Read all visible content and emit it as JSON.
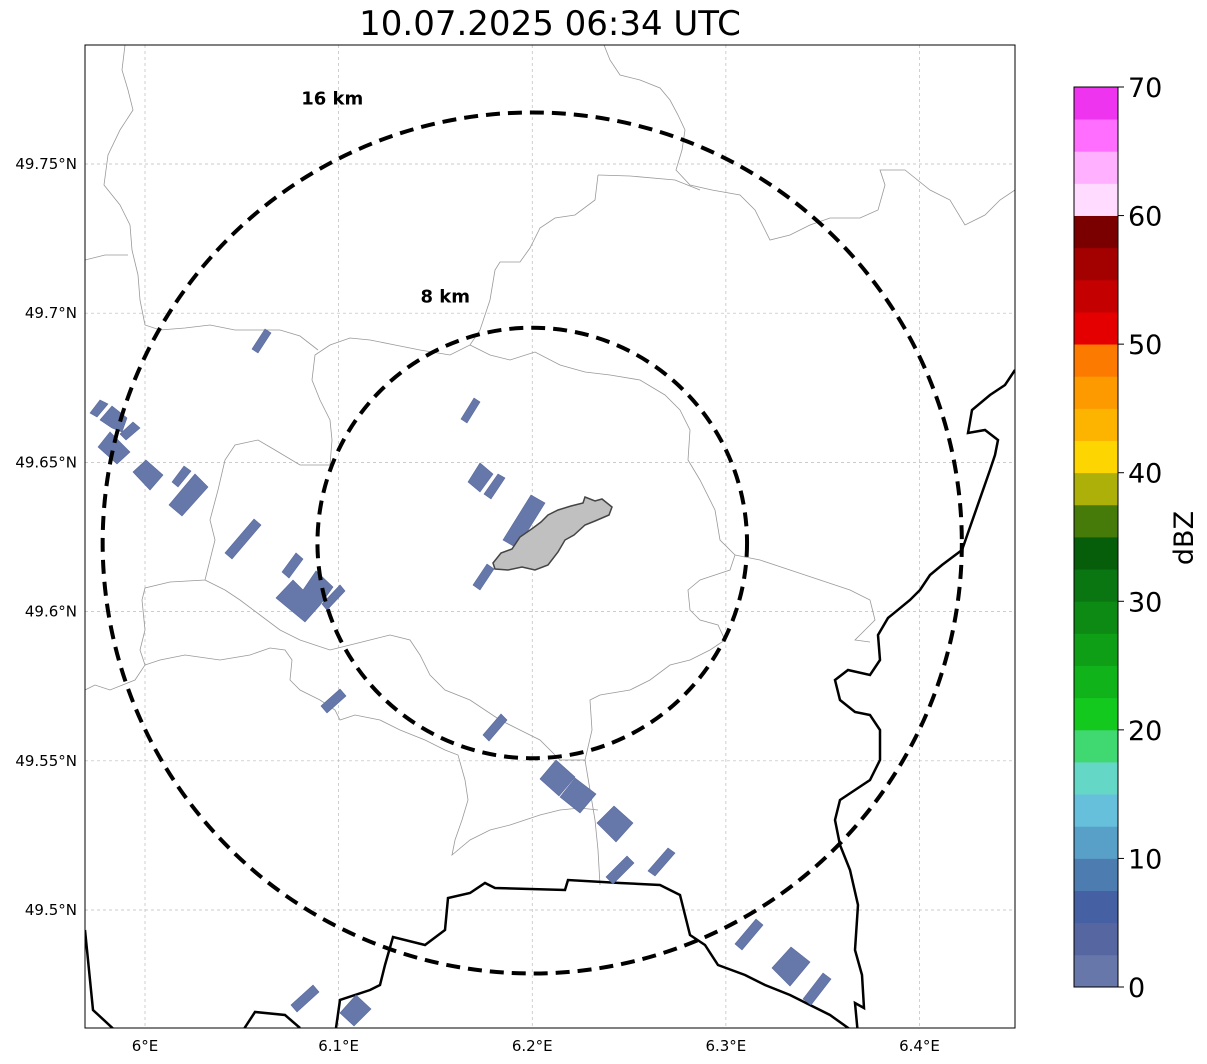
{
  "title": "10.07.2025 06:34 UTC",
  "map": {
    "type": "radar-reflectivity-map",
    "lon_range": [
      5.97,
      6.45
    ],
    "lat_range": [
      49.46,
      49.79
    ],
    "center": {
      "lon": 6.2,
      "lat": 49.623
    },
    "gridlines": true,
    "lon_ticks": [
      {
        "value": 6.0,
        "label": "6°E"
      },
      {
        "value": 6.1,
        "label": "6.1°E"
      },
      {
        "value": 6.2,
        "label": "6.2°E"
      },
      {
        "value": 6.3,
        "label": "6.3°E"
      },
      {
        "value": 6.4,
        "label": "6.4°E"
      }
    ],
    "lat_ticks": [
      {
        "value": 49.75,
        "label": "49.75°N"
      },
      {
        "value": 49.7,
        "label": "49.7°N"
      },
      {
        "value": 49.65,
        "label": "49.65°N"
      },
      {
        "value": 49.6,
        "label": "49.6°N"
      },
      {
        "value": 49.55,
        "label": "49.55°N"
      },
      {
        "value": 49.5,
        "label": "49.5°N"
      }
    ],
    "range_rings": [
      {
        "radius_km": 16,
        "label": "16 km"
      },
      {
        "radius_km": 8,
        "label": "8 km"
      }
    ],
    "echo_color": "#6677aa",
    "city_fill": "#c0c0c0"
  },
  "colorbar": {
    "label": "dBZ",
    "min": 0,
    "max": 70,
    "step": 2.5,
    "ticks": [
      {
        "value": 0,
        "label": "0"
      },
      {
        "value": 10,
        "label": "10"
      },
      {
        "value": 20,
        "label": "20"
      },
      {
        "value": 30,
        "label": "30"
      },
      {
        "value": 40,
        "label": "40"
      },
      {
        "value": 50,
        "label": "50"
      },
      {
        "value": 60,
        "label": "60"
      },
      {
        "value": 70,
        "label": "70"
      }
    ],
    "colors": [
      "#6777a9",
      "#5666a1",
      "#4561a4",
      "#4c7cb0",
      "#58a0c8",
      "#66c0dc",
      "#65d7c6",
      "#40d870",
      "#13c91e",
      "#10b31a",
      "#0f9f17",
      "#0c8a14",
      "#0a7611",
      "#065e0b",
      "#467a09",
      "#acb008",
      "#fdd500",
      "#fdb400",
      "#fd9a00",
      "#fd7a00",
      "#e40000",
      "#c40000",
      "#a30000",
      "#7a0000",
      "#ffdcff",
      "#ffb0ff",
      "#ff6eff",
      "#ef34ef"
    ]
  }
}
